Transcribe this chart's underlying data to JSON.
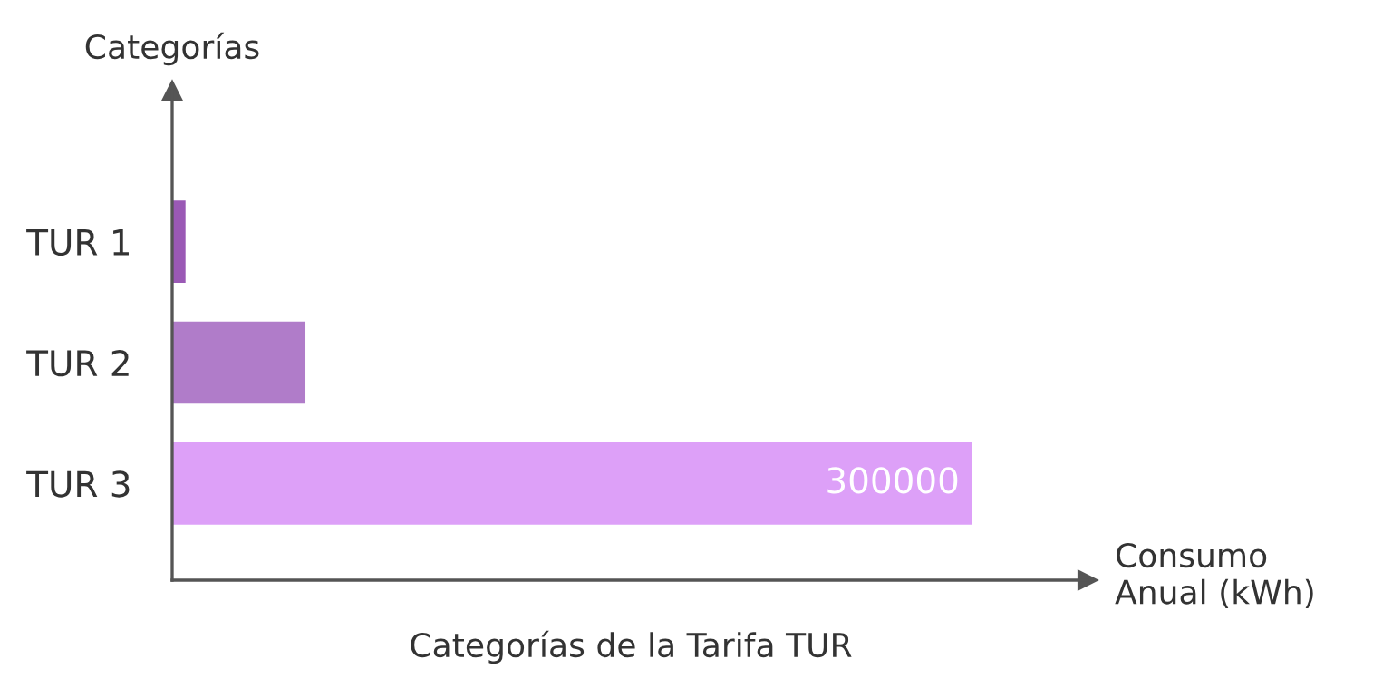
{
  "chart_data": {
    "type": "bar",
    "orientation": "horizontal",
    "title": "Categorías de la Tarifa TUR",
    "xlabel": "Consumo\nAnual (kWh)",
    "ylabel": "Categorías",
    "categories": [
      "TUR 1",
      "TUR 2",
      "TUR 3"
    ],
    "values": [
      5000,
      50000,
      300000
    ],
    "colors": [
      "#9a59b5",
      "#b07cc9",
      "#dda0f8"
    ],
    "value_labels": [
      null,
      null,
      "300000"
    ],
    "grid": false,
    "legend": false
  }
}
